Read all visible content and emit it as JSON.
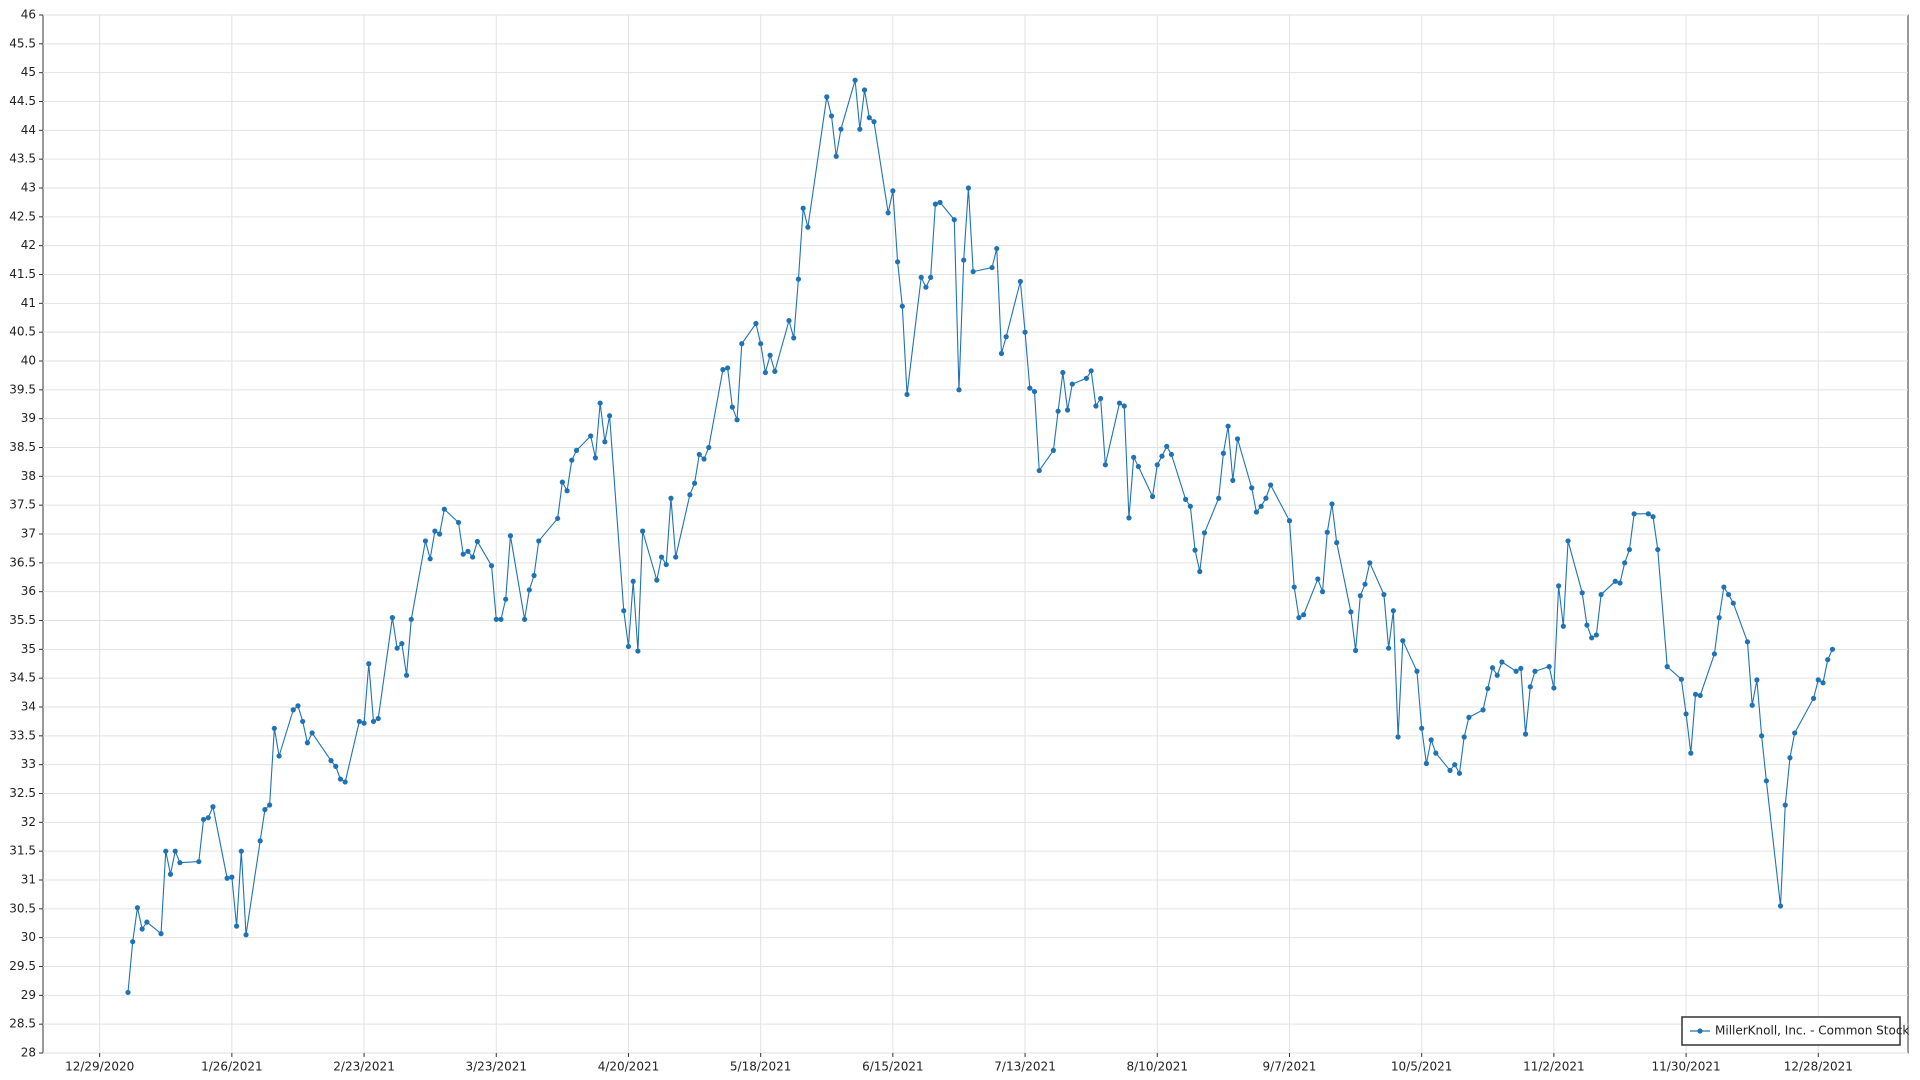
{
  "chart_data": {
    "type": "line",
    "x": [
      "1/4/2021",
      "1/5/2021",
      "1/6/2021",
      "1/7/2021",
      "1/8/2021",
      "1/11/2021",
      "1/12/2021",
      "1/13/2021",
      "1/14/2021",
      "1/15/2021",
      "1/19/2021",
      "1/20/2021",
      "1/21/2021",
      "1/22/2021",
      "1/25/2021",
      "1/26/2021",
      "1/27/2021",
      "1/28/2021",
      "1/29/2021",
      "2/1/2021",
      "2/2/2021",
      "2/3/2021",
      "2/4/2021",
      "2/5/2021",
      "2/8/2021",
      "2/9/2021",
      "2/10/2021",
      "2/11/2021",
      "2/12/2021",
      "2/16/2021",
      "2/17/2021",
      "2/18/2021",
      "2/19/2021",
      "2/22/2021",
      "2/23/2021",
      "2/24/2021",
      "2/25/2021",
      "2/26/2021",
      "3/1/2021",
      "3/2/2021",
      "3/3/2021",
      "3/4/2021",
      "3/5/2021",
      "3/8/2021",
      "3/9/2021",
      "3/10/2021",
      "3/11/2021",
      "3/12/2021",
      "3/15/2021",
      "3/16/2021",
      "3/17/2021",
      "3/18/2021",
      "3/19/2021",
      "3/22/2021",
      "3/23/2021",
      "3/24/2021",
      "3/25/2021",
      "3/26/2021",
      "3/29/2021",
      "3/30/2021",
      "3/31/2021",
      "4/1/2021",
      "4/5/2021",
      "4/6/2021",
      "4/7/2021",
      "4/8/2021",
      "4/9/2021",
      "4/12/2021",
      "4/13/2021",
      "4/14/2021",
      "4/15/2021",
      "4/16/2021",
      "4/19/2021",
      "4/20/2021",
      "4/21/2021",
      "4/22/2021",
      "4/23/2021",
      "4/26/2021",
      "4/27/2021",
      "4/28/2021",
      "4/29/2021",
      "4/30/2021",
      "5/3/2021",
      "5/4/2021",
      "5/5/2021",
      "5/6/2021",
      "5/7/2021",
      "5/10/2021",
      "5/11/2021",
      "5/12/2021",
      "5/13/2021",
      "5/14/2021",
      "5/17/2021",
      "5/18/2021",
      "5/19/2021",
      "5/20/2021",
      "5/21/2021",
      "5/24/2021",
      "5/25/2021",
      "5/26/2021",
      "5/27/2021",
      "5/28/2021",
      "6/1/2021",
      "6/2/2021",
      "6/3/2021",
      "6/4/2021",
      "6/7/2021",
      "6/8/2021",
      "6/9/2021",
      "6/10/2021",
      "6/11/2021",
      "6/14/2021",
      "6/15/2021",
      "6/16/2021",
      "6/17/2021",
      "6/18/2021",
      "6/21/2021",
      "6/22/2021",
      "6/23/2021",
      "6/24/2021",
      "6/25/2021",
      "6/28/2021",
      "6/29/2021",
      "6/30/2021",
      "7/1/2021",
      "7/2/2021",
      "7/6/2021",
      "7/7/2021",
      "7/8/2021",
      "7/9/2021",
      "7/12/2021",
      "7/13/2021",
      "7/14/2021",
      "7/15/2021",
      "7/16/2021",
      "7/19/2021",
      "7/20/2021",
      "7/21/2021",
      "7/22/2021",
      "7/23/2021",
      "7/26/2021",
      "7/27/2021",
      "7/28/2021",
      "7/29/2021",
      "7/30/2021",
      "8/2/2021",
      "8/3/2021",
      "8/4/2021",
      "8/5/2021",
      "8/6/2021",
      "8/9/2021",
      "8/10/2021",
      "8/11/2021",
      "8/12/2021",
      "8/13/2021",
      "8/16/2021",
      "8/17/2021",
      "8/18/2021",
      "8/19/2021",
      "8/20/2021",
      "8/23/2021",
      "8/24/2021",
      "8/25/2021",
      "8/26/2021",
      "8/27/2021",
      "8/30/2021",
      "8/31/2021",
      "9/1/2021",
      "9/2/2021",
      "9/3/2021",
      "9/7/2021",
      "9/8/2021",
      "9/9/2021",
      "9/10/2021",
      "9/13/2021",
      "9/14/2021",
      "9/15/2021",
      "9/16/2021",
      "9/17/2021",
      "9/20/2021",
      "9/21/2021",
      "9/22/2021",
      "9/23/2021",
      "9/24/2021",
      "9/27/2021",
      "9/28/2021",
      "9/29/2021",
      "9/30/2021",
      "10/1/2021",
      "10/4/2021",
      "10/5/2021",
      "10/6/2021",
      "10/7/2021",
      "10/8/2021",
      "10/11/2021",
      "10/12/2021",
      "10/13/2021",
      "10/14/2021",
      "10/15/2021",
      "10/18/2021",
      "10/19/2021",
      "10/20/2021",
      "10/21/2021",
      "10/22/2021",
      "10/25/2021",
      "10/26/2021",
      "10/27/2021",
      "10/28/2021",
      "10/29/2021",
      "11/1/2021",
      "11/2/2021",
      "11/3/2021",
      "11/4/2021",
      "11/5/2021",
      "11/8/2021",
      "11/9/2021",
      "11/10/2021",
      "11/11/2021",
      "11/12/2021",
      "11/15/2021",
      "11/16/2021",
      "11/17/2021",
      "11/18/2021",
      "11/19/2021",
      "11/22/2021",
      "11/23/2021",
      "11/24/2021",
      "11/26/2021",
      "11/29/2021",
      "11/30/2021",
      "12/1/2021",
      "12/2/2021",
      "12/3/2021",
      "12/6/2021",
      "12/7/2021",
      "12/8/2021",
      "12/9/2021",
      "12/10/2021",
      "12/13/2021",
      "12/14/2021",
      "12/15/2021",
      "12/16/2021",
      "12/17/2021",
      "12/20/2021",
      "12/21/2021",
      "12/22/2021",
      "12/23/2021",
      "12/27/2021",
      "12/28/2021",
      "12/29/2021",
      "12/30/2021",
      "12/31/2021"
    ],
    "series": [
      {
        "name": "MillerKnoll, Inc. - Common Stock",
        "color": "#1f73b4",
        "values": [
          29.05,
          29.93,
          30.52,
          30.15,
          30.27,
          30.07,
          31.5,
          31.1,
          31.5,
          31.3,
          31.32,
          32.05,
          32.08,
          32.27,
          31.03,
          31.05,
          30.2,
          31.5,
          30.05,
          31.68,
          32.22,
          32.3,
          33.63,
          33.15,
          33.95,
          34.02,
          33.75,
          33.38,
          33.55,
          33.07,
          32.97,
          32.75,
          32.7,
          33.75,
          33.72,
          34.75,
          33.75,
          33.8,
          35.55,
          35.02,
          35.1,
          34.55,
          35.52,
          36.88,
          36.57,
          37.05,
          37.0,
          37.43,
          37.2,
          36.65,
          36.7,
          36.6,
          36.87,
          36.45,
          35.52,
          35.52,
          35.87,
          36.97,
          35.52,
          36.03,
          36.28,
          36.88,
          37.27,
          37.9,
          37.75,
          38.28,
          38.45,
          38.7,
          38.32,
          39.27,
          38.6,
          39.05,
          35.67,
          35.05,
          36.18,
          34.97,
          37.05,
          36.2,
          36.6,
          36.47,
          37.62,
          36.6,
          37.68,
          37.88,
          38.38,
          38.3,
          38.5,
          39.85,
          39.88,
          39.2,
          38.98,
          40.3,
          40.65,
          40.3,
          39.8,
          40.1,
          39.82,
          40.7,
          40.4,
          41.42,
          42.65,
          42.32,
          44.58,
          44.25,
          43.55,
          44.02,
          44.87,
          44.02,
          44.7,
          44.22,
          44.15,
          42.57,
          42.95,
          41.72,
          40.95,
          39.42,
          41.45,
          41.28,
          41.45,
          42.72,
          42.75,
          42.45,
          39.5,
          41.75,
          43.0,
          41.55,
          41.62,
          41.95,
          40.13,
          40.42,
          41.38,
          40.5,
          39.53,
          39.47,
          38.1,
          38.45,
          39.13,
          39.8,
          39.15,
          39.6,
          39.7,
          39.83,
          39.22,
          39.35,
          38.2,
          39.27,
          39.22,
          37.28,
          38.33,
          38.17,
          37.65,
          38.2,
          38.35,
          38.52,
          38.38,
          37.6,
          37.48,
          36.72,
          36.35,
          37.02,
          37.62,
          38.4,
          38.87,
          37.93,
          38.65,
          37.8,
          37.38,
          37.48,
          37.62,
          37.85,
          37.23,
          36.08,
          35.55,
          35.6,
          36.22,
          36.0,
          37.03,
          37.52,
          36.85,
          35.65,
          34.98,
          35.93,
          36.13,
          36.5,
          35.95,
          35.02,
          35.67,
          33.48,
          35.15,
          34.62,
          33.63,
          33.02,
          33.43,
          33.2,
          32.9,
          33.0,
          32.85,
          33.48,
          33.82,
          33.95,
          34.32,
          34.68,
          34.55,
          34.78,
          34.62,
          34.67,
          33.53,
          34.35,
          34.62,
          34.7,
          34.33,
          36.1,
          35.4,
          36.88,
          35.98,
          35.42,
          35.2,
          35.25,
          35.95,
          36.18,
          36.15,
          36.5,
          36.73,
          37.35,
          37.35,
          37.3,
          36.73,
          34.7,
          34.48,
          33.88,
          33.2,
          34.22,
          34.2,
          34.92,
          35.55,
          36.08,
          35.95,
          35.8,
          35.13,
          34.03,
          34.47,
          33.5,
          32.72,
          30.55,
          32.3,
          33.12,
          33.55,
          34.15,
          34.47,
          34.42,
          34.82,
          35.0
        ]
      }
    ],
    "xlim": [
      "12/17/2020",
      "1/16/2022"
    ],
    "xticks": [
      "12/29/2020",
      "1/26/2021",
      "2/23/2021",
      "3/23/2021",
      "4/20/2021",
      "5/18/2021",
      "6/15/2021",
      "7/13/2021",
      "8/10/2021",
      "9/7/2021",
      "10/5/2021",
      "11/2/2021",
      "11/30/2021",
      "12/28/2021"
    ],
    "ylim": [
      28,
      46
    ],
    "yticks": [
      28,
      28.5,
      29,
      29.5,
      30,
      30.5,
      31,
      31.5,
      32,
      32.5,
      33,
      33.5,
      34,
      34.5,
      35,
      35.5,
      36,
      36.5,
      37,
      37.5,
      38,
      38.5,
      39,
      39.5,
      40,
      40.5,
      41,
      41.5,
      42,
      42.5,
      43,
      43.5,
      44,
      44.5,
      45,
      45.5,
      46
    ],
    "grid": true,
    "legend": "lower right"
  }
}
